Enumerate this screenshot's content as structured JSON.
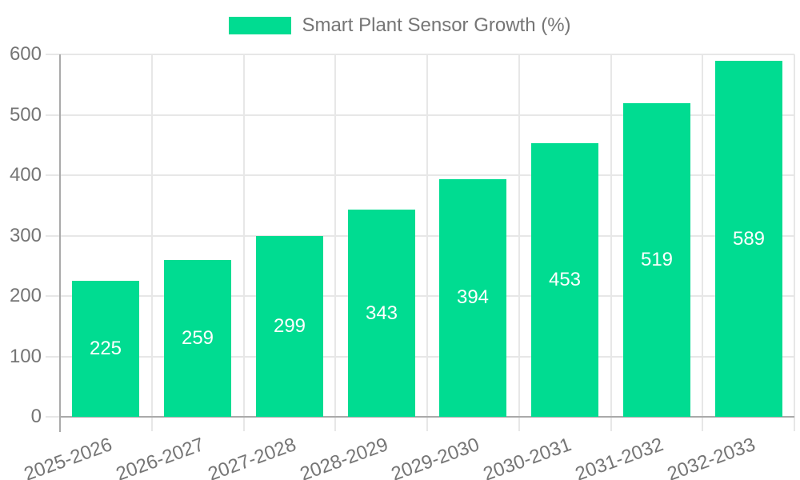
{
  "chart_data": {
    "type": "bar",
    "title": "Smart Plant Sensor Growth (%)",
    "legend_entries": [
      "Smart Plant Sensor Growth (%)"
    ],
    "legend_position": "top-center",
    "categories": [
      "2025-2026",
      "2026-2027",
      "2027-2028",
      "2028-2029",
      "2029-2030",
      "2030-2031",
      "2031-2032",
      "2032-2033"
    ],
    "values": [
      225,
      259,
      299,
      343,
      394,
      453,
      519,
      589
    ],
    "bar_value_labels": [
      "225",
      "259",
      "299",
      "343",
      "394",
      "453",
      "519",
      "589"
    ],
    "xlabel": "",
    "ylabel": "",
    "ylim": [
      0,
      600
    ],
    "y_ticks": [
      0,
      100,
      200,
      300,
      400,
      500,
      600
    ],
    "grid": true,
    "x_label_rotation_deg": -20,
    "bar_labels_inside": true,
    "colors": {
      "bar": "#00dc91",
      "bar_label": "#ffffff",
      "axis_line": "#aaaaaa",
      "grid_line": "#e7e7e7",
      "text": "#757575",
      "background": "#ffffff"
    }
  }
}
